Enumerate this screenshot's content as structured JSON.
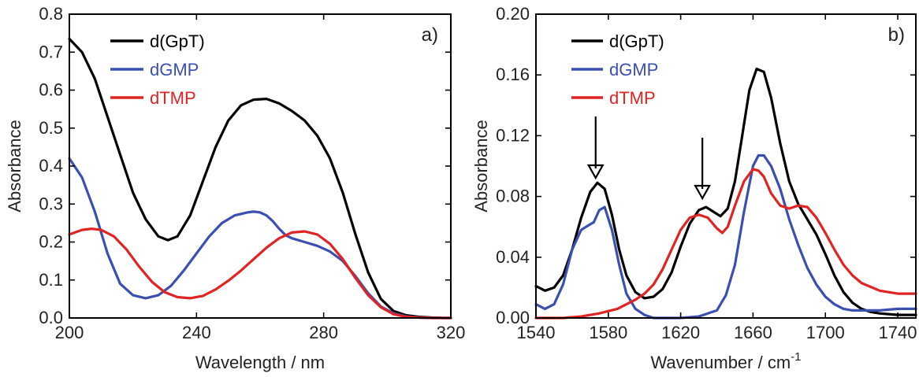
{
  "chart_data": [
    {
      "type": "line",
      "panel_label": "a)",
      "xlabel": "Wavelength / nm",
      "ylabel": "Absorbance",
      "xlim": [
        200,
        320
      ],
      "ylim": [
        0,
        0.8
      ],
      "xticks": [
        200,
        240,
        280,
        320
      ],
      "yticks": [
        0.0,
        0.1,
        0.2,
        0.3,
        0.4,
        0.5,
        0.6,
        0.7,
        0.8
      ],
      "ytick_labels": [
        "0.0",
        "0.1",
        "0.2",
        "0.3",
        "0.4",
        "0.5",
        "0.6",
        "0.7",
        "0.8"
      ],
      "legend_position": "top-left",
      "series": [
        {
          "name": "d(GpT)",
          "color": "#000000",
          "x": [
            200,
            204,
            208,
            212,
            216,
            220,
            224,
            228,
            231,
            234,
            238,
            242,
            246,
            250,
            254,
            258,
            262,
            266,
            270,
            274,
            278,
            282,
            286,
            290,
            294,
            298,
            302,
            306,
            310,
            314,
            318,
            320
          ],
          "y": [
            0.735,
            0.7,
            0.63,
            0.53,
            0.43,
            0.33,
            0.26,
            0.215,
            0.205,
            0.215,
            0.27,
            0.36,
            0.45,
            0.52,
            0.56,
            0.575,
            0.577,
            0.565,
            0.545,
            0.52,
            0.48,
            0.42,
            0.33,
            0.22,
            0.12,
            0.05,
            0.018,
            0.007,
            0.003,
            0.001,
            0.0,
            0.0
          ]
        },
        {
          "name": "dGMP",
          "color": "#3b4fb0",
          "x": [
            200,
            204,
            208,
            212,
            216,
            220,
            224,
            228,
            232,
            236,
            240,
            244,
            248,
            252,
            256,
            258,
            260,
            262,
            264,
            266,
            268,
            270,
            274,
            278,
            282,
            286,
            290,
            294,
            298,
            302,
            306,
            310,
            314,
            320
          ],
          "y": [
            0.42,
            0.37,
            0.28,
            0.17,
            0.09,
            0.06,
            0.052,
            0.06,
            0.085,
            0.125,
            0.17,
            0.215,
            0.25,
            0.27,
            0.278,
            0.28,
            0.278,
            0.27,
            0.255,
            0.235,
            0.218,
            0.21,
            0.2,
            0.19,
            0.175,
            0.15,
            0.11,
            0.065,
            0.03,
            0.012,
            0.004,
            0.001,
            0.0,
            0.0
          ]
        },
        {
          "name": "dTMP",
          "color": "#e02424",
          "x": [
            200,
            204,
            207,
            210,
            214,
            218,
            222,
            226,
            230,
            234,
            238,
            242,
            246,
            250,
            254,
            258,
            262,
            266,
            270,
            274,
            278,
            282,
            286,
            290,
            294,
            298,
            302,
            306,
            310,
            314,
            320
          ],
          "y": [
            0.22,
            0.232,
            0.235,
            0.232,
            0.215,
            0.18,
            0.135,
            0.095,
            0.068,
            0.055,
            0.052,
            0.058,
            0.075,
            0.098,
            0.125,
            0.155,
            0.185,
            0.21,
            0.225,
            0.228,
            0.22,
            0.195,
            0.155,
            0.105,
            0.06,
            0.028,
            0.01,
            0.003,
            0.001,
            0.0,
            0.0
          ]
        }
      ]
    },
    {
      "type": "line",
      "panel_label": "b)",
      "xlabel": "Wavenumber / cm",
      "xlabel_superscript": "-1",
      "ylabel": "Absorbance",
      "xlim": [
        1540,
        1750
      ],
      "ylim": [
        0,
        0.2
      ],
      "xticks": [
        1540,
        1580,
        1620,
        1660,
        1700,
        1740
      ],
      "yticks": [
        0.0,
        0.04,
        0.08,
        0.12,
        0.16,
        0.2
      ],
      "ytick_labels": [
        "0.00",
        "0.04",
        "0.08",
        "0.12",
        "0.16",
        "0.20"
      ],
      "legend_position": "top-left",
      "arrows_at_x": [
        1573,
        1632
      ],
      "series": [
        {
          "name": "d(GpT)",
          "color": "#000000",
          "x": [
            1540,
            1545,
            1550,
            1555,
            1560,
            1565,
            1570,
            1574,
            1578,
            1582,
            1586,
            1590,
            1595,
            1600,
            1605,
            1610,
            1615,
            1620,
            1625,
            1630,
            1634,
            1638,
            1642,
            1646,
            1650,
            1654,
            1658,
            1662,
            1666,
            1670,
            1675,
            1680,
            1685,
            1690,
            1695,
            1700,
            1705,
            1710,
            1715,
            1720,
            1725,
            1730,
            1740,
            1750
          ],
          "y": [
            0.021,
            0.018,
            0.02,
            0.028,
            0.045,
            0.066,
            0.083,
            0.089,
            0.085,
            0.068,
            0.045,
            0.028,
            0.017,
            0.013,
            0.014,
            0.019,
            0.03,
            0.047,
            0.062,
            0.071,
            0.073,
            0.07,
            0.067,
            0.072,
            0.09,
            0.12,
            0.15,
            0.164,
            0.162,
            0.145,
            0.115,
            0.09,
            0.075,
            0.065,
            0.055,
            0.042,
            0.028,
            0.017,
            0.01,
            0.006,
            0.004,
            0.003,
            0.002,
            0.002
          ]
        },
        {
          "name": "dGMP",
          "color": "#3b4fb0",
          "x": [
            1540,
            1545,
            1550,
            1555,
            1560,
            1565,
            1569,
            1572,
            1575,
            1578,
            1582,
            1586,
            1590,
            1595,
            1600,
            1605,
            1610,
            1620,
            1630,
            1640,
            1645,
            1650,
            1655,
            1660,
            1663,
            1666,
            1670,
            1675,
            1680,
            1685,
            1690,
            1695,
            1700,
            1705,
            1710,
            1715,
            1720,
            1730,
            1740,
            1750
          ],
          "y": [
            0.009,
            0.006,
            0.009,
            0.022,
            0.045,
            0.058,
            0.061,
            0.063,
            0.071,
            0.073,
            0.058,
            0.035,
            0.016,
            0.006,
            0.002,
            0.0,
            0.0,
            0.0,
            0.001,
            0.005,
            0.015,
            0.035,
            0.07,
            0.1,
            0.107,
            0.107,
            0.1,
            0.085,
            0.065,
            0.048,
            0.033,
            0.022,
            0.014,
            0.009,
            0.006,
            0.005,
            0.005,
            0.005,
            0.006,
            0.006
          ]
        },
        {
          "name": "dTMP",
          "color": "#e02424",
          "x": [
            1540,
            1555,
            1565,
            1575,
            1585,
            1595,
            1600,
            1605,
            1610,
            1615,
            1620,
            1625,
            1630,
            1635,
            1640,
            1643,
            1646,
            1650,
            1655,
            1660,
            1663,
            1666,
            1670,
            1675,
            1680,
            1685,
            1690,
            1695,
            1700,
            1705,
            1710,
            1715,
            1720,
            1730,
            1740,
            1750
          ],
          "y": [
            0.0,
            0.0,
            0.001,
            0.003,
            0.006,
            0.012,
            0.016,
            0.022,
            0.032,
            0.045,
            0.058,
            0.066,
            0.068,
            0.066,
            0.059,
            0.056,
            0.06,
            0.074,
            0.09,
            0.098,
            0.097,
            0.093,
            0.082,
            0.074,
            0.072,
            0.074,
            0.073,
            0.066,
            0.056,
            0.045,
            0.035,
            0.028,
            0.023,
            0.018,
            0.016,
            0.016
          ]
        }
      ]
    }
  ]
}
